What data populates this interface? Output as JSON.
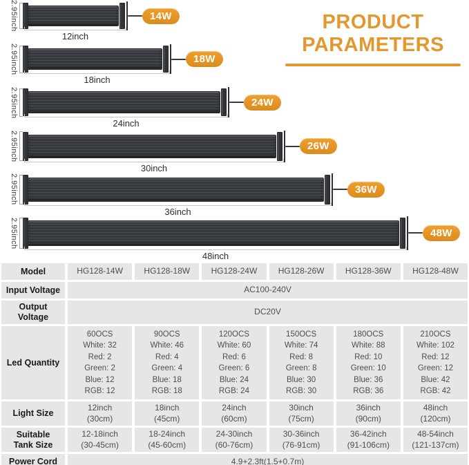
{
  "title": {
    "line1": "PRODUCT",
    "line2": "PARAMETERS"
  },
  "colors": {
    "accent": "#E2982F",
    "badge": "#EE9F2C",
    "badge_deep": "#DB8C1E",
    "cell": "#E6E6E6"
  },
  "lights": [
    {
      "height_label": "2.95inch",
      "length_label": "12inch",
      "watt_label": "14W"
    },
    {
      "height_label": "2.95inch",
      "length_label": "18inch",
      "watt_label": "18W"
    },
    {
      "height_label": "2.95inch",
      "length_label": "24inch",
      "watt_label": "24W"
    },
    {
      "height_label": "2.95inch",
      "length_label": "30inch",
      "watt_label": "26W"
    },
    {
      "height_label": "2.95inch",
      "length_label": "36inch",
      "watt_label": "36W"
    },
    {
      "height_label": "2.95inch",
      "length_label": "48inch",
      "watt_label": "48W"
    }
  ],
  "table": {
    "rows": [
      {
        "label": "Model",
        "cells": [
          "HG128-14W",
          "HG128-18W",
          "HG128-24W",
          "HG128-26W",
          "HG128-36W",
          "HG128-48W"
        ]
      },
      {
        "label": "Input Voltage",
        "merged": "AC100-240V"
      },
      {
        "label": [
          "Output",
          "Voltage"
        ],
        "merged": "DC20V"
      },
      {
        "label": "Led Quantity",
        "cells": [
          [
            "60OCS",
            "White: 32",
            "Red: 2",
            "Green: 2",
            "Blue: 12",
            "RGB: 12"
          ],
          [
            "90OCS",
            "White: 46",
            "Red: 4",
            "Green: 4",
            "Blue: 18",
            "RGB: 18"
          ],
          [
            "120OCS",
            "White: 60",
            "Red: 6",
            "Green: 6",
            "Blue: 24",
            "RGB: 24"
          ],
          [
            "150OCS",
            "White: 74",
            "Red: 8",
            "Green: 8",
            "Blue: 30",
            "RGB: 30"
          ],
          [
            "180OCS",
            "White: 88",
            "Red: 10",
            "Green: 10",
            "Blue: 36",
            "RGB: 36"
          ],
          [
            "210OCS",
            "White: 102",
            "Red: 12",
            "Green: 12",
            "Blue: 42",
            "RGB: 42"
          ]
        ]
      },
      {
        "label": "Light Size",
        "cells": [
          [
            "12inch",
            "(30cm)"
          ],
          [
            "18inch",
            "(45cm)"
          ],
          [
            "24inch",
            "(60cm)"
          ],
          [
            "30inch",
            "(75cm)"
          ],
          [
            "36inch",
            "(90cm)"
          ],
          [
            "48inch",
            "(120cm)"
          ]
        ]
      },
      {
        "label": [
          "Suitable",
          "Tank Size"
        ],
        "cells": [
          [
            "12-18inch",
            "(30-45cm)"
          ],
          [
            "18-24inch",
            "(45-60cm)"
          ],
          [
            "24-30inch",
            "(60-76cm)"
          ],
          [
            "30-36inch",
            "(76-91cm)"
          ],
          [
            "36-42inch",
            "(91-106cm)"
          ],
          [
            "48-54inch",
            "(121-137cm)"
          ]
        ]
      },
      {
        "label": "Power Cord",
        "merged": "4.9+2.3ft(1.5+0.7m)"
      }
    ]
  }
}
